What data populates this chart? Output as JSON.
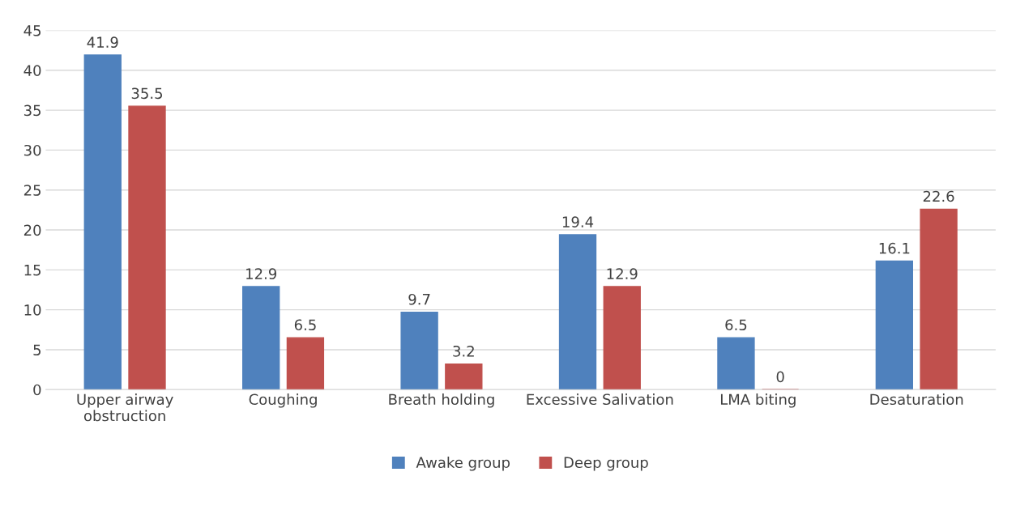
{
  "chart_data": {
    "type": "bar",
    "categories": [
      "Upper airway\nobstruction",
      "Coughing",
      "Breath holding",
      "Excessive Salivation",
      "LMA biting",
      "Desaturation"
    ],
    "series": [
      {
        "name": "Awake group",
        "color": "#4f81bd",
        "values": [
          41.9,
          12.9,
          9.7,
          19.4,
          6.5,
          16.1
        ]
      },
      {
        "name": "Deep group",
        "color": "#c0504d",
        "values": [
          35.5,
          6.5,
          3.2,
          12.9,
          0,
          22.6
        ]
      }
    ],
    "ylim": [
      0,
      45
    ],
    "yticks": [
      0,
      5,
      10,
      15,
      20,
      25,
      30,
      35,
      40,
      45
    ],
    "grid": "y",
    "legend": "bottom",
    "data_labels": true
  }
}
